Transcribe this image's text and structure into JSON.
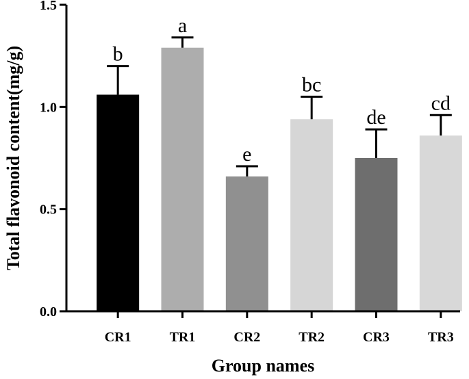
{
  "chart_data": {
    "type": "bar",
    "title": "",
    "xlabel": "Group names",
    "ylabel": "Total flavonoid content(mg/g)",
    "ylim": [
      0,
      1.5
    ],
    "yticks": [
      "0.0",
      "0.5",
      "1.0",
      "1.5"
    ],
    "grid": false,
    "categories": [
      "CR1",
      "TR1",
      "CR2",
      "TR2",
      "CR3",
      "TR3"
    ],
    "values": [
      1.06,
      1.29,
      0.66,
      0.94,
      0.75,
      0.86
    ],
    "errors": [
      0.14,
      0.05,
      0.05,
      0.11,
      0.14,
      0.1
    ],
    "significance": [
      "b",
      "a",
      "e",
      "bc",
      "de",
      "cd"
    ],
    "colors": [
      "#000000",
      "#adadad",
      "#909090",
      "#d6d6d6",
      "#6e6e6e",
      "#d8d8d8"
    ]
  }
}
